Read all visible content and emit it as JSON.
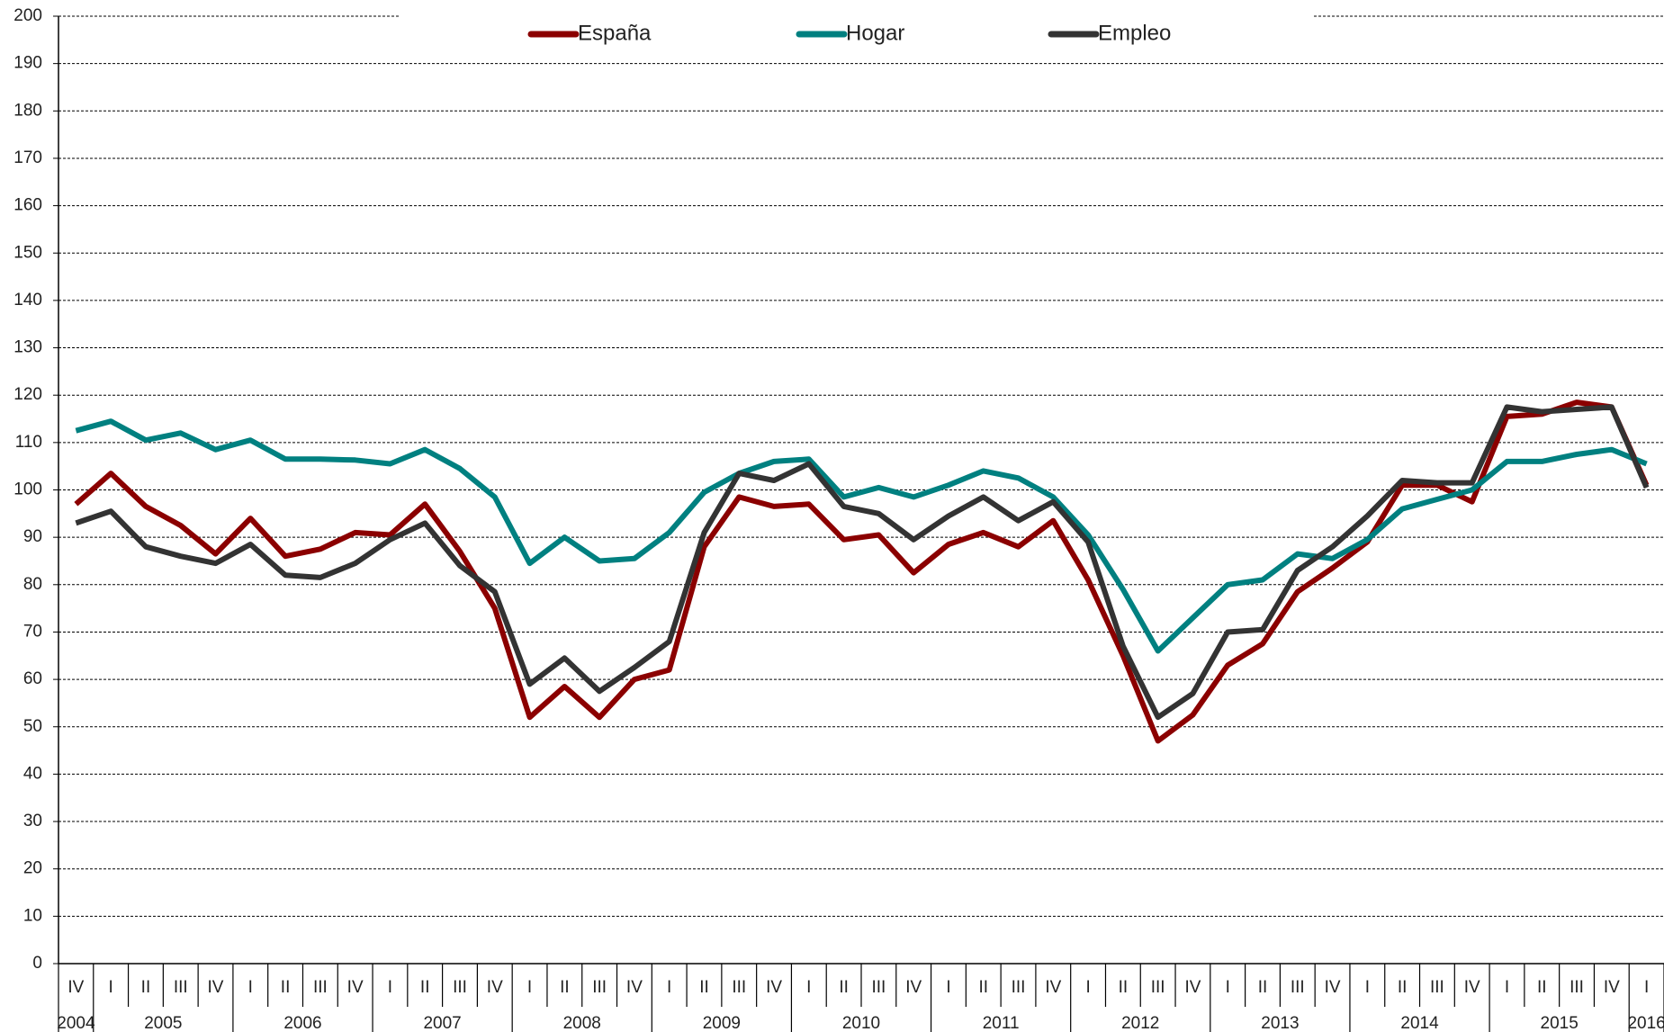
{
  "chart_data": {
    "type": "line",
    "categories": [
      "IV",
      "I",
      "II",
      "III",
      "IV",
      "I",
      "II",
      "III",
      "IV",
      "I",
      "II",
      "III",
      "IV",
      "I",
      "II",
      "III",
      "IV",
      "I",
      "II",
      "III",
      "IV",
      "I",
      "II",
      "III",
      "IV",
      "I",
      "II",
      "III",
      "IV",
      "I",
      "II",
      "III",
      "IV",
      "I",
      "II",
      "III",
      "IV",
      "I",
      "II",
      "III",
      "IV",
      "I",
      "II",
      "III",
      "IV",
      "I"
    ],
    "year_labels": [
      "2004",
      "2005",
      null,
      null,
      null,
      "2006",
      null,
      null,
      null,
      "2007",
      null,
      null,
      null,
      "2008",
      null,
      null,
      null,
      "2009",
      null,
      null,
      null,
      "2010",
      null,
      null,
      null,
      "2011",
      null,
      null,
      null,
      "2012",
      null,
      null,
      null,
      "2013",
      null,
      null,
      null,
      "2014",
      null,
      null,
      null,
      "2015",
      null,
      null,
      null,
      "2016"
    ],
    "series": [
      {
        "name": "España",
        "color": "#8b0000",
        "values": [
          97,
          103.5,
          96.5,
          92.5,
          86.5,
          94,
          86,
          87.5,
          91,
          90.5,
          97,
          87,
          75,
          52,
          58.5,
          52,
          60,
          62,
          88,
          98.5,
          96.5,
          97,
          89.5,
          90.5,
          82.5,
          88.5,
          91,
          88,
          93.5,
          81,
          65,
          47,
          52.5,
          63,
          67.5,
          78.5,
          83.5,
          89,
          101,
          101,
          97.5,
          115.5,
          116,
          118.5,
          117.5,
          101
        ]
      },
      {
        "name": "Hogar",
        "color": "#008080",
        "values": [
          112.5,
          114.5,
          110.5,
          112,
          108.5,
          110.5,
          106.5,
          106.5,
          106.3,
          105.5,
          108.5,
          104.5,
          98.5,
          84.5,
          90,
          85,
          85.5,
          91,
          99.5,
          103.5,
          106,
          106.5,
          98.5,
          100.5,
          98.5,
          101,
          104,
          102.5,
          98.5,
          90.5,
          79,
          66,
          73,
          80,
          81,
          86.5,
          85.5,
          89.5,
          96,
          98,
          100,
          106,
          106,
          107.5,
          108.5,
          105.5
        ]
      },
      {
        "name": "Empleo",
        "color": "#333333",
        "values": [
          93,
          95.5,
          88,
          86,
          84.5,
          88.5,
          82,
          81.5,
          84.5,
          89.5,
          93,
          84,
          78.5,
          59,
          64.5,
          57.5,
          62.5,
          68,
          91,
          103.5,
          102,
          105.5,
          96.5,
          95,
          89.5,
          94.5,
          98.5,
          93.5,
          97.5,
          89,
          67,
          52,
          57,
          70,
          70.5,
          83,
          88,
          94.5,
          102,
          101.5,
          101.5,
          117.5,
          116.5,
          117,
          117.5,
          100.5
        ]
      }
    ],
    "ylim": [
      0,
      200
    ],
    "yticks": [
      0,
      10,
      20,
      30,
      40,
      50,
      60,
      70,
      80,
      90,
      100,
      110,
      120,
      130,
      140,
      150,
      160,
      170,
      180,
      190,
      200
    ],
    "grid": true
  }
}
